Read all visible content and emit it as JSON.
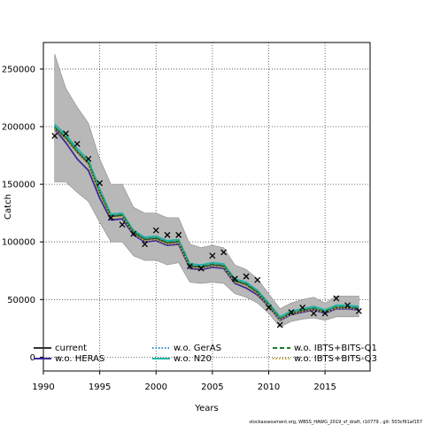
{
  "chart_data": {
    "type": "line",
    "xlabel": "Years",
    "ylabel": "Catch",
    "xlim": [
      1990,
      2019
    ],
    "ylim": [
      -12000,
      273000
    ],
    "x_ticks": [
      1990,
      1995,
      2000,
      2005,
      2010,
      2015
    ],
    "y_ticks": [
      0,
      50000,
      100000,
      150000,
      200000,
      250000
    ],
    "grid": true,
    "legend_position": "bottom",
    "x": [
      1991,
      1992,
      1993,
      1994,
      1995,
      1996,
      1997,
      1998,
      1999,
      2000,
      2001,
      2002,
      2003,
      2004,
      2005,
      2006,
      2007,
      2008,
      2009,
      2010,
      2011,
      2012,
      2013,
      2014,
      2015,
      2016,
      2017,
      2018
    ],
    "band": {
      "upper": [
        263000,
        233000,
        217000,
        203000,
        172000,
        150000,
        150000,
        130000,
        125000,
        125000,
        121000,
        121000,
        98000,
        95000,
        97000,
        95000,
        80000,
        76000,
        68000,
        55000,
        42000,
        47000,
        50000,
        52000,
        47000,
        53000,
        53000,
        53000
      ],
      "lower": [
        152000,
        152000,
        143000,
        135000,
        117000,
        100000,
        100000,
        88000,
        84000,
        84000,
        80000,
        82000,
        65000,
        64000,
        65000,
        64000,
        55000,
        52000,
        47000,
        38000,
        26000,
        31000,
        33000,
        34000,
        32000,
        35000,
        35000,
        35000
      ]
    },
    "series": [
      {
        "name": "current",
        "color": "#333333",
        "dash": "solid",
        "values": [
          199000,
          190000,
          178000,
          168000,
          143000,
          122000,
          123000,
          108000,
          102000,
          103000,
          99000,
          100000,
          79000,
          78000,
          80000,
          79000,
          66000,
          63000,
          56000,
          45000,
          33000,
          38000,
          40000,
          42000,
          39000,
          43000,
          43000,
          42000
        ]
      },
      {
        "name": "w.o. HERAS",
        "color": "#3a2a9a",
        "dash": "solid",
        "values": [
          198000,
          186000,
          172000,
          162000,
          138000,
          119000,
          120000,
          106000,
          100000,
          101000,
          97000,
          98000,
          77000,
          76000,
          78000,
          77000,
          64000,
          60000,
          54000,
          44000,
          32000,
          37000,
          39000,
          41000,
          38000,
          42000,
          42000,
          41000
        ]
      },
      {
        "name": "w.o. GerAS",
        "color": "#2a8fd0",
        "dash": "dotted",
        "values": [
          201000,
          192000,
          180000,
          170000,
          145000,
          123000,
          124000,
          109000,
          103000,
          104000,
          100000,
          101000,
          80000,
          79000,
          81000,
          80000,
          67000,
          64000,
          57000,
          46000,
          34000,
          39000,
          41000,
          43000,
          40000,
          44000,
          44000,
          43000
        ]
      },
      {
        "name": "w.o. N20",
        "color": "#1fb5a5",
        "dash": "solid",
        "values": [
          202000,
          193000,
          181000,
          171000,
          146000,
          124000,
          125000,
          110000,
          104000,
          105000,
          101000,
          102000,
          81000,
          80000,
          82000,
          81000,
          68000,
          65000,
          58000,
          47000,
          35000,
          40000,
          42000,
          44000,
          41000,
          45000,
          45000,
          44000
        ]
      },
      {
        "name": "w.o. IBTS+BITS-Q1",
        "color": "#1a7a2a",
        "dash": "dashed",
        "values": [
          199500,
          190500,
          178500,
          168500,
          143500,
          122500,
          123500,
          108500,
          102500,
          103500,
          99500,
          100500,
          79500,
          78500,
          80500,
          79500,
          66500,
          63500,
          56500,
          45500,
          33500,
          38500,
          40500,
          42500,
          39500,
          43500,
          43500,
          42500
        ]
      },
      {
        "name": "w.o. IBTS+BITS-Q3",
        "color": "#c9a227",
        "dash": "dotted",
        "values": [
          198000,
          189000,
          177000,
          167000,
          142000,
          121000,
          122000,
          107000,
          101000,
          102000,
          98000,
          99000,
          78000,
          77000,
          79000,
          78000,
          65000,
          62000,
          55000,
          44500,
          32500,
          37500,
          39500,
          41500,
          38500,
          42500,
          42500,
          41500
        ]
      }
    ],
    "observed": {
      "marker": "x",
      "x": [
        1991,
        1992,
        1993,
        1994,
        1995,
        1996,
        1997,
        1998,
        1999,
        2000,
        2001,
        2002,
        2003,
        2004,
        2005,
        2006,
        2007,
        2008,
        2009,
        2010,
        2011,
        2012,
        2013,
        2014,
        2015,
        2016,
        2017,
        2018
      ],
      "values": [
        192000,
        194000,
        185000,
        172000,
        151000,
        121000,
        115000,
        107000,
        98000,
        110000,
        106000,
        106000,
        79000,
        77000,
        88000,
        91000,
        68000,
        70000,
        67000,
        43000,
        28000,
        39000,
        43000,
        38000,
        38000,
        51000,
        45000,
        40000
      ]
    },
    "footnote": "stockassessment.org, WBSS_HAWG_2019_sf_draft, r10779 , git: 503cf91af157",
    "colors": {
      "band": "#b8b8b8",
      "band_edge": "#8a8a8a",
      "grid": "#444444",
      "background": "#ffffff"
    }
  }
}
